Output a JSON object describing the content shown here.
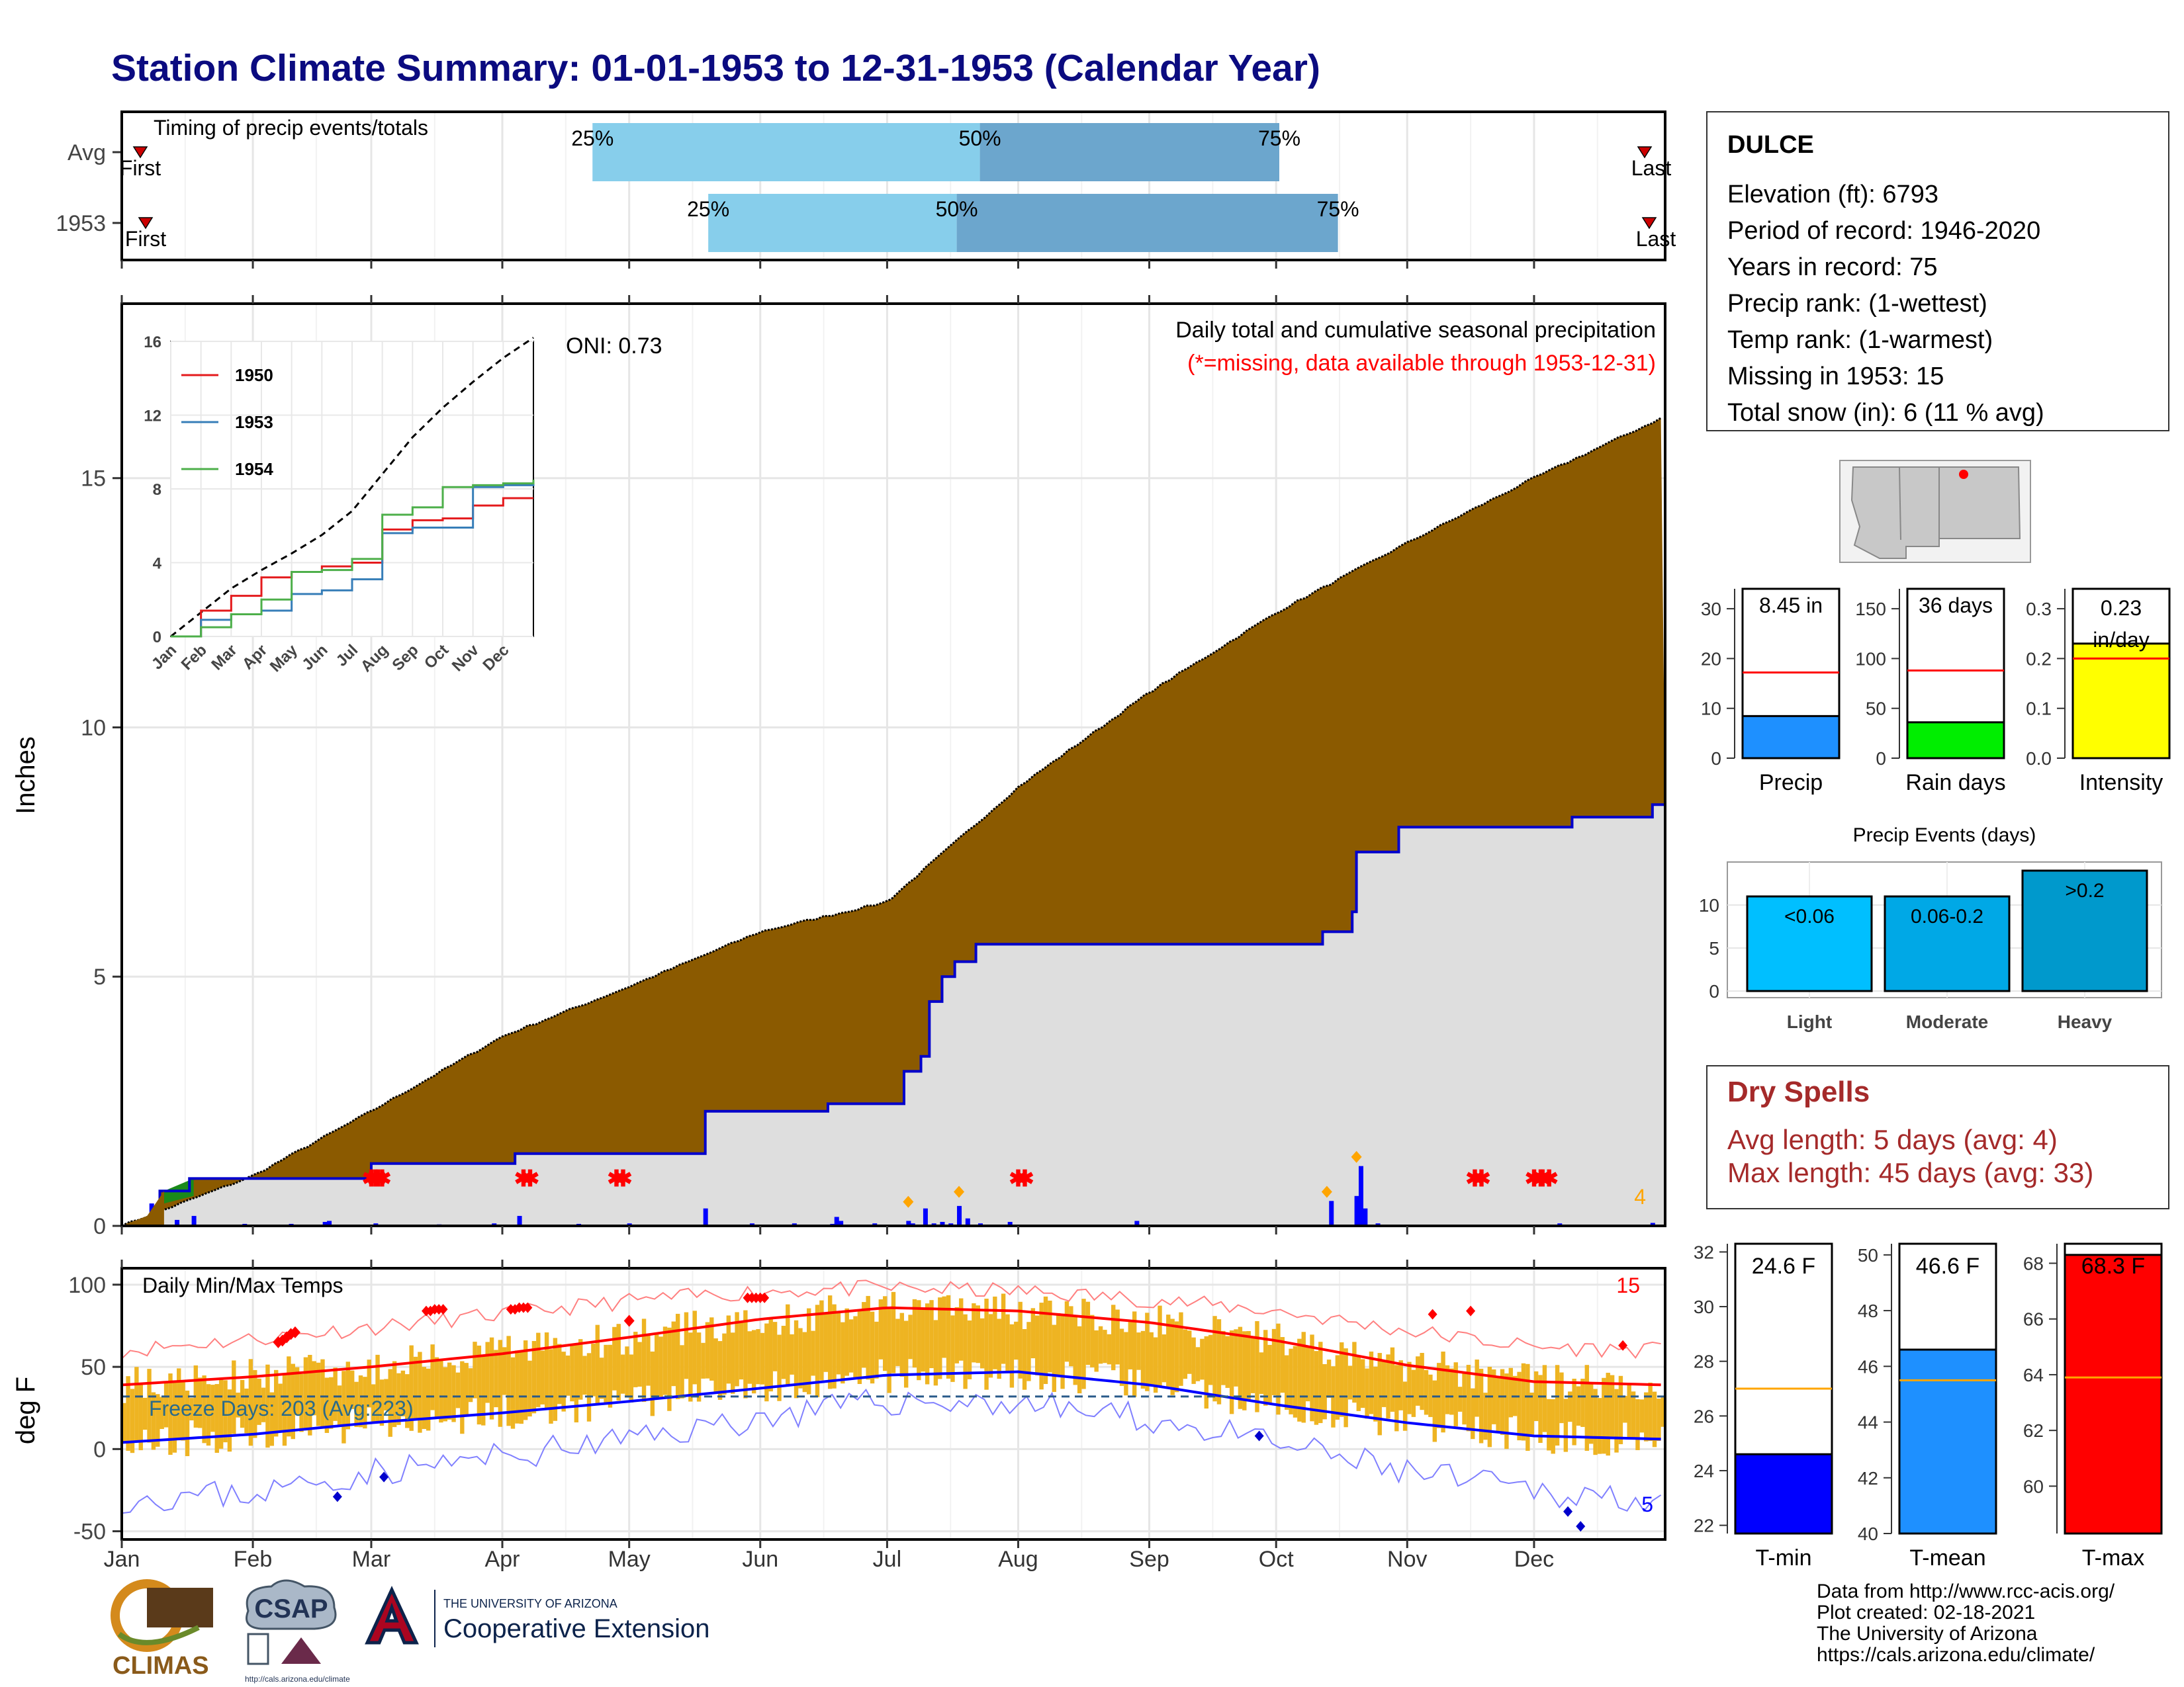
{
  "title": "Station Climate Summary: 01-01-1953 to 12-31-1953 (Calendar Year)",
  "timing_panel": {
    "label": "Timing of precip events/totals",
    "rows": [
      {
        "name": "Avg",
        "p25": 0.305,
        "p50": 0.556,
        "p75": 0.75,
        "first_label": "First",
        "last_label": "Last"
      },
      {
        "name": "1953",
        "p25": 0.38,
        "p50": 0.541,
        "p75": 0.788,
        "first_label": "First",
        "last_label": "Last"
      }
    ],
    "pct_labels": [
      "25%",
      "50%",
      "75%"
    ]
  },
  "precip_panel": {
    "ylabel": "Inches",
    "title": "Daily total and cumulative seasonal precipitation",
    "subtitle": "(*=missing, data available through 1953-12-31)",
    "oni": "ONI: 0.73",
    "corner_count": "4",
    "yticks": [
      "0",
      "5",
      "10",
      "15"
    ]
  },
  "temp_panel": {
    "ylabel": "deg F",
    "title": "Daily Min/Max Temps",
    "freeze_label": "Freeze Days: 203 (Avg:223)",
    "count_top": "15",
    "count_bottom": "5",
    "yticks": [
      "-50",
      "0",
      "50",
      "100"
    ]
  },
  "x_months": [
    "Jan",
    "Feb",
    "Mar",
    "Apr",
    "May",
    "Jun",
    "Jul",
    "Aug",
    "Sep",
    "Oct",
    "Nov",
    "Dec"
  ],
  "inset": {
    "months": [
      "Jan",
      "Feb",
      "Mar",
      "Apr",
      "May",
      "Jun",
      "Jul",
      "Aug",
      "Sep",
      "Oct",
      "Nov",
      "Dec"
    ],
    "yticks": [
      "0",
      "4",
      "8",
      "12",
      "16"
    ],
    "legend": [
      {
        "name": "1950",
        "color": "#e41a1c"
      },
      {
        "name": "1953",
        "color": "#377eb8"
      },
      {
        "name": "1954",
        "color": "#4daf4a"
      }
    ]
  },
  "station": {
    "name": "DULCE",
    "lines": [
      "Elevation (ft): 6793",
      "Period of record: 1946-2020",
      "Years in record: 75",
      "Precip rank:  (1-wettest)",
      "Temp rank:  (1-warmest)",
      "Missing in 1953: 15",
      "Total snow (in): 6 (11 % avg)"
    ]
  },
  "summary_bars": [
    {
      "label": "Precip",
      "value_label": "8.45 in",
      "value": 8.45,
      "avg": 17.2,
      "ymax": 34,
      "ticks": [
        "0",
        "10",
        "20",
        "30"
      ],
      "color": "#1e90ff"
    },
    {
      "label": "Rain days",
      "value_label": "36 days",
      "value": 36,
      "avg": 88,
      "ymax": 170,
      "ticks": [
        "0",
        "50",
        "100",
        "150"
      ],
      "color": "#00ee00"
    },
    {
      "label": "Intensity",
      "value_label": "0.23 in/day",
      "value": 0.23,
      "avg": 0.2,
      "ymax": 0.34,
      "ticks": [
        "0.0",
        "0.1",
        "0.2",
        "0.3"
      ],
      "color": "#ffff00"
    }
  ],
  "precip_events": {
    "title": "Precip Events (days)",
    "bars": [
      {
        "name": "Light",
        "label": "<0.06",
        "value": 11,
        "color": "#00bfff"
      },
      {
        "name": "Moderate",
        "label": "0.06-0.2",
        "value": 11,
        "color": "#00a8e6"
      },
      {
        "name": "Heavy",
        "label": ">0.2",
        "value": 14,
        "color": "#0099cc"
      }
    ],
    "ticks": [
      "0",
      "5",
      "10"
    ]
  },
  "dry_spells": {
    "title": "Dry Spells",
    "avg_line": "Avg length: 5 days (avg: 4)",
    "max_line": "Max length: 45 days (avg: 33)"
  },
  "temp_bars": [
    {
      "label": "T-min",
      "value_label": "24.6 F",
      "value": 24.6,
      "avg": 27,
      "ymin": 21.7,
      "ymax": 32.3,
      "ticks": [
        "22",
        "24",
        "26",
        "28",
        "30",
        "32"
      ],
      "color": "#0000ff"
    },
    {
      "label": "T-mean",
      "value_label": "46.6 F",
      "value": 46.6,
      "avg": 45.5,
      "ymin": 40,
      "ymax": 50.4,
      "ticks": [
        "40",
        "42",
        "44",
        "46",
        "48",
        "50"
      ],
      "color": "#1e90ff"
    },
    {
      "label": "T-max",
      "value_label": "68.3 F",
      "value": 68.3,
      "avg": 63.9,
      "ymin": 58.3,
      "ymax": 68.7,
      "ticks": [
        "60",
        "62",
        "64",
        "66",
        "68"
      ],
      "color": "#ff0000"
    }
  ],
  "credits": [
    "Data from http://www.rcc-acis.org/",
    "Plot created: 02-18-2021",
    "The University of Arizona",
    "https://cals.arizona.edu/climate/"
  ],
  "logos": {
    "climas": "CLIMAS",
    "csap": "CSAP",
    "csap_url": "http://cals.arizona.edu/climate",
    "ua_small": "THE UNIVERSITY OF ARIZONA",
    "ua_big": "Cooperative Extension"
  },
  "chart_data": [
    {
      "type": "area",
      "title": "Daily total and cumulative seasonal precipitation",
      "ylabel": "Inches",
      "xlim": [
        "1953-01-01",
        "1953-12-31"
      ],
      "ylim": [
        0,
        18.5
      ],
      "series": [
        {
          "name": "",
          "x": [
            "1953-01-01",
            "1953-02-01",
            "1953-03-01",
            "1953-04-01",
            "1953-05-01",
            "1953-06-01",
            "1953-07-01",
            "1953-08-01",
            "1953-09-01",
            "1953-10-01",
            "1953-11-01",
            "1953-12-01",
            "1953-12-31"
          ],
          "values": [
            0,
            1.0,
            2.3,
            3.8,
            4.8,
            5.9,
            6.5,
            8.8,
            10.7,
            12.3,
            13.7,
            15.0,
            16.2
          ]
        },
        {
          "name": "1953",
          "x": [
            "1953-01-01",
            "1953-01-10",
            "1953-01-17",
            "1953-03-01",
            "1953-04-04",
            "1953-05-19",
            "1953-06-17",
            "1953-07-05",
            "1953-07-09",
            "1953-07-11",
            "1953-07-14",
            "1953-07-17",
            "1953-07-22",
            "1953-10-12",
            "1953-10-19",
            "1953-10-20",
            "1953-10-30",
            "1953-12-10",
            "1953-12-29"
          ],
          "values": [
            0,
            0.7,
            0.95,
            1.25,
            1.45,
            2.3,
            2.45,
            3.1,
            3.4,
            4.5,
            5.0,
            5.3,
            5.65,
            5.9,
            6.3,
            7.5,
            8.0,
            8.2,
            8.45
          ]
        }
      ],
      "missing_days": [
        "1953-03-01",
        "1953-03-02",
        "1953-04-06",
        "1953-04-28",
        "1953-08-01",
        "1953-11-17",
        "1953-12-01",
        "1953-12-03"
      ]
    },
    {
      "type": "line",
      "title": "Daily Min/Max Temps",
      "ylabel": "deg F",
      "ylim": [
        -55,
        110
      ],
      "x": [
        "Jan",
        "Feb",
        "Mar",
        "Apr",
        "May",
        "Jun",
        "Jul",
        "Aug",
        "Sep",
        "Oct",
        "Nov",
        "Dec",
        "Dec-end"
      ],
      "series": [
        {
          "name": "avg max",
          "values": [
            39,
            44,
            50,
            58,
            68,
            79,
            86,
            84,
            77,
            66,
            51,
            41,
            39
          ]
        },
        {
          "name": "avg min",
          "values": [
            4,
            9,
            16,
            22,
            29,
            37,
            45,
            47,
            39,
            27,
            16,
            8,
            6
          ]
        },
        {
          "name": "record max",
          "values": [
            60,
            67,
            74,
            82,
            90,
            96,
            98,
            96,
            91,
            84,
            72,
            62,
            60
          ]
        },
        {
          "name": "record min",
          "values": [
            -30,
            -27,
            -14,
            -5,
            6,
            19,
            29,
            28,
            18,
            3,
            -14,
            -26,
            -30
          ]
        }
      ],
      "freeze_line": 32
    },
    {
      "type": "line",
      "title": "",
      "x": [
        "Jan",
        "Feb",
        "Mar",
        "Apr",
        "May",
        "Jun",
        "Jul",
        "Aug",
        "Sep",
        "Oct",
        "Nov",
        "Dec",
        "Dec-end"
      ],
      "ylim": [
        0,
        16
      ],
      "series": [
        {
          "name": "Avg",
          "values": [
            0,
            1.3,
            2.6,
            3.6,
            4.5,
            5.5,
            6.8,
            8.8,
            10.8,
            12.4,
            13.8,
            15.1,
            16.2
          ]
        },
        {
          "name": "1950",
          "values": [
            0,
            1.4,
            2.2,
            3.2,
            3.5,
            3.8,
            4.0,
            5.8,
            6.3,
            6.4,
            7.1,
            7.5,
            7.5
          ]
        },
        {
          "name": "1953",
          "values": [
            0,
            0.9,
            1.2,
            1.4,
            2.3,
            2.5,
            3.1,
            5.6,
            5.9,
            5.9,
            8.1,
            8.2,
            8.4
          ]
        },
        {
          "name": "1954",
          "values": [
            0,
            0.5,
            1.2,
            2.0,
            3.5,
            3.6,
            4.2,
            6.6,
            7.0,
            8.1,
            8.2,
            8.3,
            8.5
          ]
        }
      ]
    }
  ]
}
